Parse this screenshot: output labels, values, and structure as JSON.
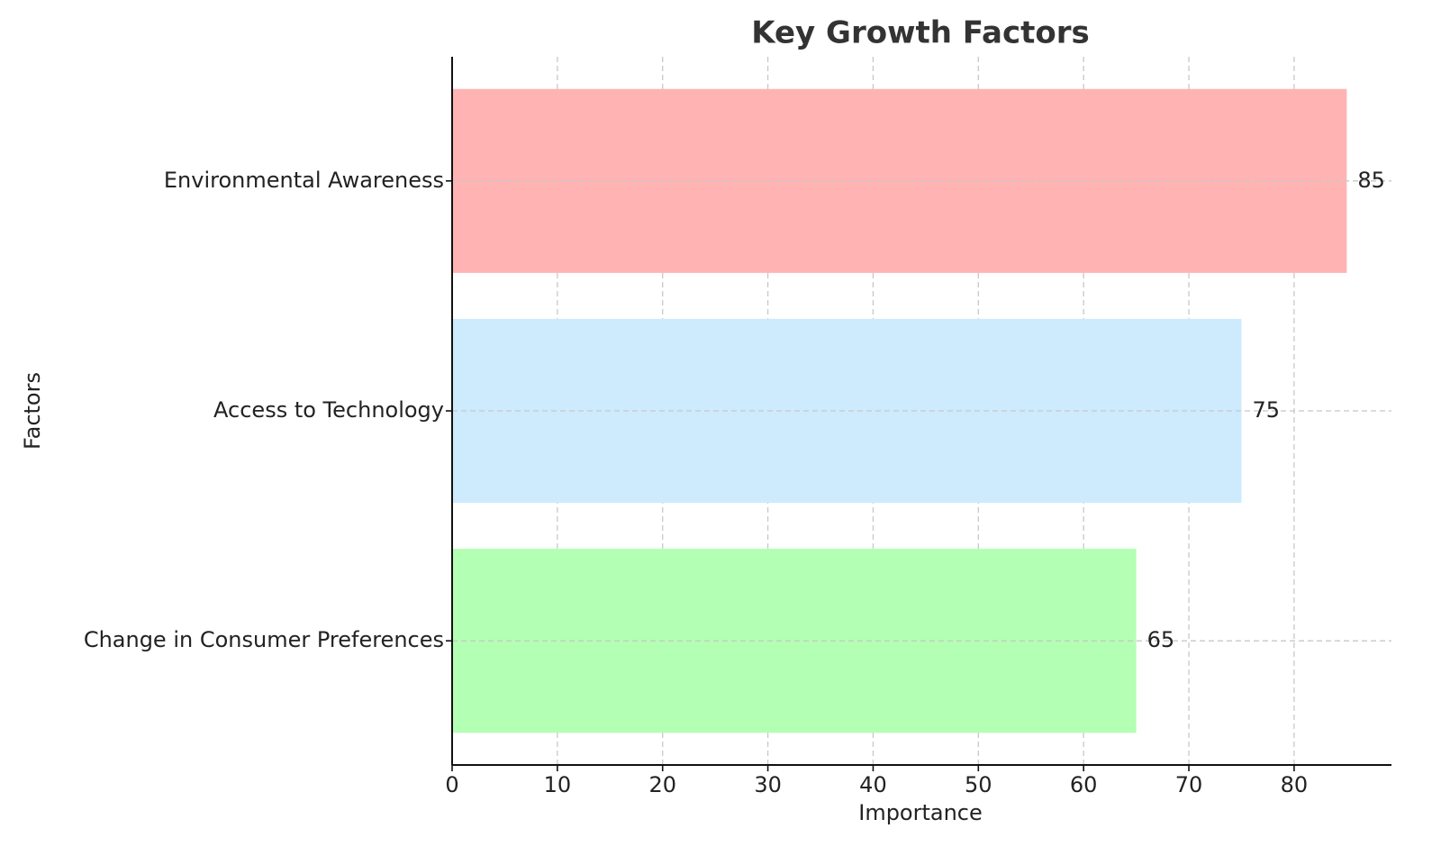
{
  "chart_data": {
    "type": "barh",
    "title": "Key Growth Factors",
    "x_label": "Importance",
    "y_label": "Factors",
    "categories": [
      "Change in Consumer Preferences",
      "Access to Technology",
      "Environmental Awareness"
    ],
    "values": [
      65,
      75,
      85
    ],
    "colors": [
      "#b3ffb3",
      "#cdebfc",
      "#ffb3b3"
    ],
    "xlim": [
      0,
      89.25
    ],
    "xticks": [
      0,
      10,
      20,
      30,
      40,
      50,
      60,
      70,
      80
    ],
    "grid": true
  }
}
